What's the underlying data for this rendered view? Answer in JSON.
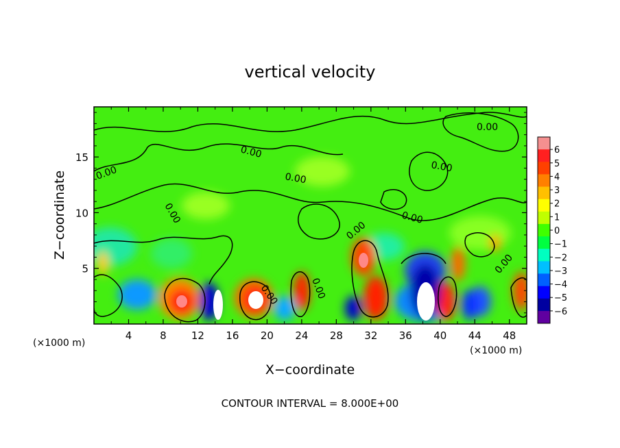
{
  "chart_data": {
    "type": "heatmap",
    "title": "vertical velocity",
    "xlabel": "X−coordinate",
    "ylabel": "Z−coordinate",
    "x_unit_label": "(×1000 m)",
    "x_unit_label_right": "(×1000 m)",
    "xlim": [
      0,
      50
    ],
    "ylim": [
      0,
      19.5
    ],
    "x_ticks": [
      4,
      8,
      12,
      16,
      20,
      24,
      28,
      32,
      36,
      40,
      44,
      48
    ],
    "x_tick_labels": [
      "4",
      "8",
      "12",
      "16",
      "20",
      "24",
      "28",
      "32",
      "36",
      "40",
      "44",
      "48"
    ],
    "y_ticks": [
      5,
      10,
      15
    ],
    "y_tick_labels": [
      "5",
      "10",
      "15"
    ],
    "contour_label": "0.00",
    "footer": "CONTOUR INTERVAL = 8.000E+00",
    "colorbar": {
      "min": -6,
      "max": 6,
      "tick_labels": [
        "6",
        "5",
        "4",
        "3",
        "2",
        "1",
        "0",
        "−1",
        "−2",
        "−3",
        "−4",
        "−5",
        "−6"
      ],
      "colors": [
        "#f59090",
        "#ff2020",
        "#ff4000",
        "#ff8000",
        "#ffc000",
        "#ffff00",
        "#c0ff00",
        "#40ff00",
        "#00ff40",
        "#00ffc0",
        "#00c0ff",
        "#0060ff",
        "#0000ff",
        "#0000a0",
        "#6000a0"
      ]
    },
    "features": [
      {
        "kind": "updraft",
        "x": 10.5,
        "z": 2.5,
        "value": 5.5
      },
      {
        "kind": "updraft",
        "x": 18.5,
        "z": 2.3,
        "value": 6
      },
      {
        "kind": "updraft",
        "x": 24.5,
        "z": 2.5,
        "value": 4.5
      },
      {
        "kind": "updraft",
        "x": 31.0,
        "z": 5.8,
        "value": 5.5
      },
      {
        "kind": "updraft",
        "x": 32.5,
        "z": 2.3,
        "value": 5
      },
      {
        "kind": "updraft",
        "x": 40.5,
        "z": 2.5,
        "value": 5.5
      },
      {
        "kind": "updraft",
        "x": 42.5,
        "z": 5.5,
        "value": 4
      },
      {
        "kind": "updraft",
        "x": 49.5,
        "z": 2.8,
        "value": 4.5
      },
      {
        "kind": "updraft",
        "x": 1.0,
        "z": 5.8,
        "value": 3
      },
      {
        "kind": "updraft",
        "x": 46.5,
        "z": 7.5,
        "value": 3
      },
      {
        "kind": "downdraft",
        "x": 13.8,
        "z": 2.5,
        "value": -5.5
      },
      {
        "kind": "downdraft",
        "x": 38.2,
        "z": 3.5,
        "value": -6
      },
      {
        "kind": "downdraft",
        "x": 6.0,
        "z": 2.8,
        "value": -3.5
      },
      {
        "kind": "downdraft",
        "x": 22.0,
        "z": 2.2,
        "value": -3
      },
      {
        "kind": "downdraft",
        "x": 30.0,
        "z": 1.5,
        "value": -5
      },
      {
        "kind": "downdraft",
        "x": 36.0,
        "z": 5.5,
        "value": -4
      },
      {
        "kind": "downdraft",
        "x": 43.8,
        "z": 2.2,
        "value": -4
      },
      {
        "kind": "downdraft",
        "x": 3.5,
        "z": 5.0,
        "value": -3
      }
    ]
  }
}
